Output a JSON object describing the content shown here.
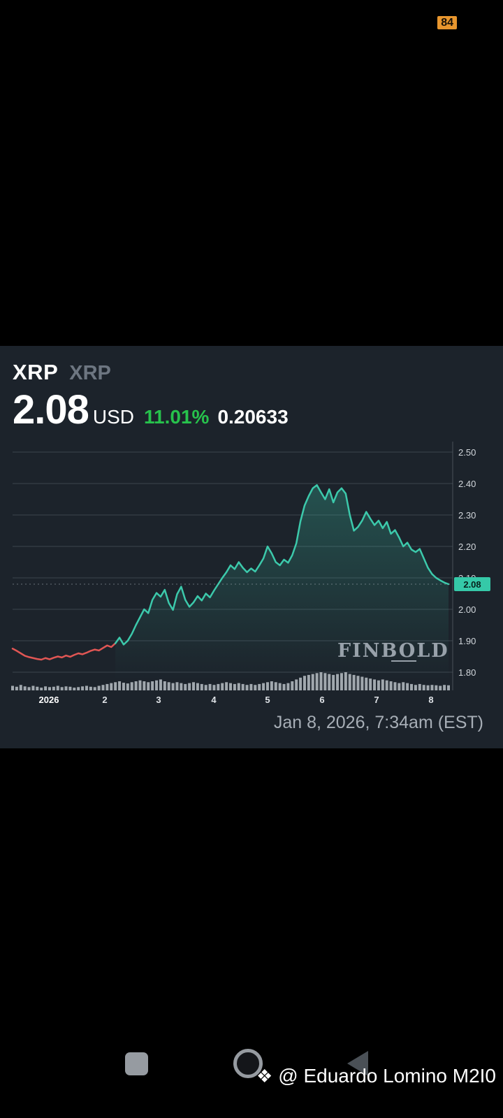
{
  "status_bar": {
    "battery_badge": "84"
  },
  "quote": {
    "ticker": "XRP",
    "ticker_symbol": "XRP",
    "price": "2.08",
    "currency": "USD",
    "change_percent": "11.01%",
    "change_value": "0.20633",
    "timestamp": "Jan 8, 2026, 7:34am (EST)",
    "provider_watermark": "FINBOLD"
  },
  "chart_data": {
    "type": "line",
    "title": "",
    "xlabel": "",
    "ylabel": "",
    "x_labels": [
      "2026",
      "2",
      "3",
      "4",
      "5",
      "6",
      "7",
      "8"
    ],
    "y_ticks": [
      2.5,
      2.4,
      2.3,
      2.2,
      2.1,
      2.0,
      1.9,
      1.8
    ],
    "ylim": [
      1.775,
      2.555
    ],
    "grid": true,
    "legend": false,
    "current_price": 2.08,
    "current_price_label": "2.08",
    "red_until_index": 25,
    "prices": [
      1.875,
      1.868,
      1.86,
      1.852,
      1.848,
      1.845,
      1.842,
      1.84,
      1.845,
      1.841,
      1.846,
      1.85,
      1.847,
      1.853,
      1.849,
      1.855,
      1.86,
      1.857,
      1.862,
      1.868,
      1.872,
      1.869,
      1.877,
      1.885,
      1.88,
      1.892,
      1.91,
      1.888,
      1.9,
      1.922,
      1.95,
      1.975,
      2.0,
      1.988,
      2.03,
      2.052,
      2.04,
      2.062,
      2.02,
      1.998,
      2.048,
      2.072,
      2.03,
      2.008,
      2.022,
      2.042,
      2.028,
      2.05,
      2.038,
      2.06,
      2.08,
      2.1,
      2.118,
      2.14,
      2.128,
      2.15,
      2.132,
      2.118,
      2.13,
      2.12,
      2.14,
      2.162,
      2.2,
      2.178,
      2.15,
      2.14,
      2.158,
      2.148,
      2.172,
      2.21,
      2.28,
      2.33,
      2.36,
      2.385,
      2.395,
      2.372,
      2.35,
      2.382,
      2.34,
      2.372,
      2.385,
      2.368,
      2.3,
      2.25,
      2.262,
      2.282,
      2.31,
      2.288,
      2.268,
      2.282,
      2.258,
      2.278,
      2.24,
      2.252,
      2.228,
      2.2,
      2.212,
      2.19,
      2.182,
      2.192,
      2.162,
      2.132,
      2.112,
      2.1,
      2.092,
      2.085,
      2.08
    ],
    "volumes": [
      0.25,
      0.2,
      0.3,
      0.22,
      0.18,
      0.25,
      0.2,
      0.15,
      0.22,
      0.18,
      0.2,
      0.25,
      0.18,
      0.22,
      0.2,
      0.15,
      0.18,
      0.22,
      0.25,
      0.2,
      0.18,
      0.25,
      0.3,
      0.35,
      0.4,
      0.45,
      0.5,
      0.42,
      0.38,
      0.45,
      0.5,
      0.55,
      0.5,
      0.45,
      0.5,
      0.55,
      0.6,
      0.5,
      0.45,
      0.4,
      0.45,
      0.4,
      0.35,
      0.4,
      0.45,
      0.4,
      0.35,
      0.3,
      0.35,
      0.3,
      0.35,
      0.4,
      0.45,
      0.4,
      0.35,
      0.4,
      0.35,
      0.3,
      0.35,
      0.3,
      0.35,
      0.4,
      0.45,
      0.5,
      0.45,
      0.4,
      0.35,
      0.4,
      0.5,
      0.6,
      0.7,
      0.8,
      0.85,
      0.9,
      0.95,
      1.0,
      0.95,
      0.9,
      0.85,
      0.9,
      0.95,
      1.0,
      0.9,
      0.85,
      0.8,
      0.75,
      0.7,
      0.65,
      0.6,
      0.55,
      0.6,
      0.55,
      0.5,
      0.45,
      0.4,
      0.45,
      0.4,
      0.35,
      0.3,
      0.35,
      0.3,
      0.28,
      0.3,
      0.28,
      0.25,
      0.3,
      0.28
    ],
    "colors": {
      "line_up": "#3cc9ab",
      "line_down": "#e15654",
      "price_badge": "#35c9a8",
      "accent_green": "#27c24c",
      "grid": "#3d454e",
      "axis_label": "#d2d7dc",
      "volume_bar": "#b9bfc5"
    }
  },
  "nav_bar": {
    "recents_icon": "recents-square",
    "home_icon": "home-circle",
    "back_icon": "back-triangle"
  },
  "overlay": {
    "credit_icon": "❖",
    "credit": "@ Eduardo Lomino M2I0"
  }
}
